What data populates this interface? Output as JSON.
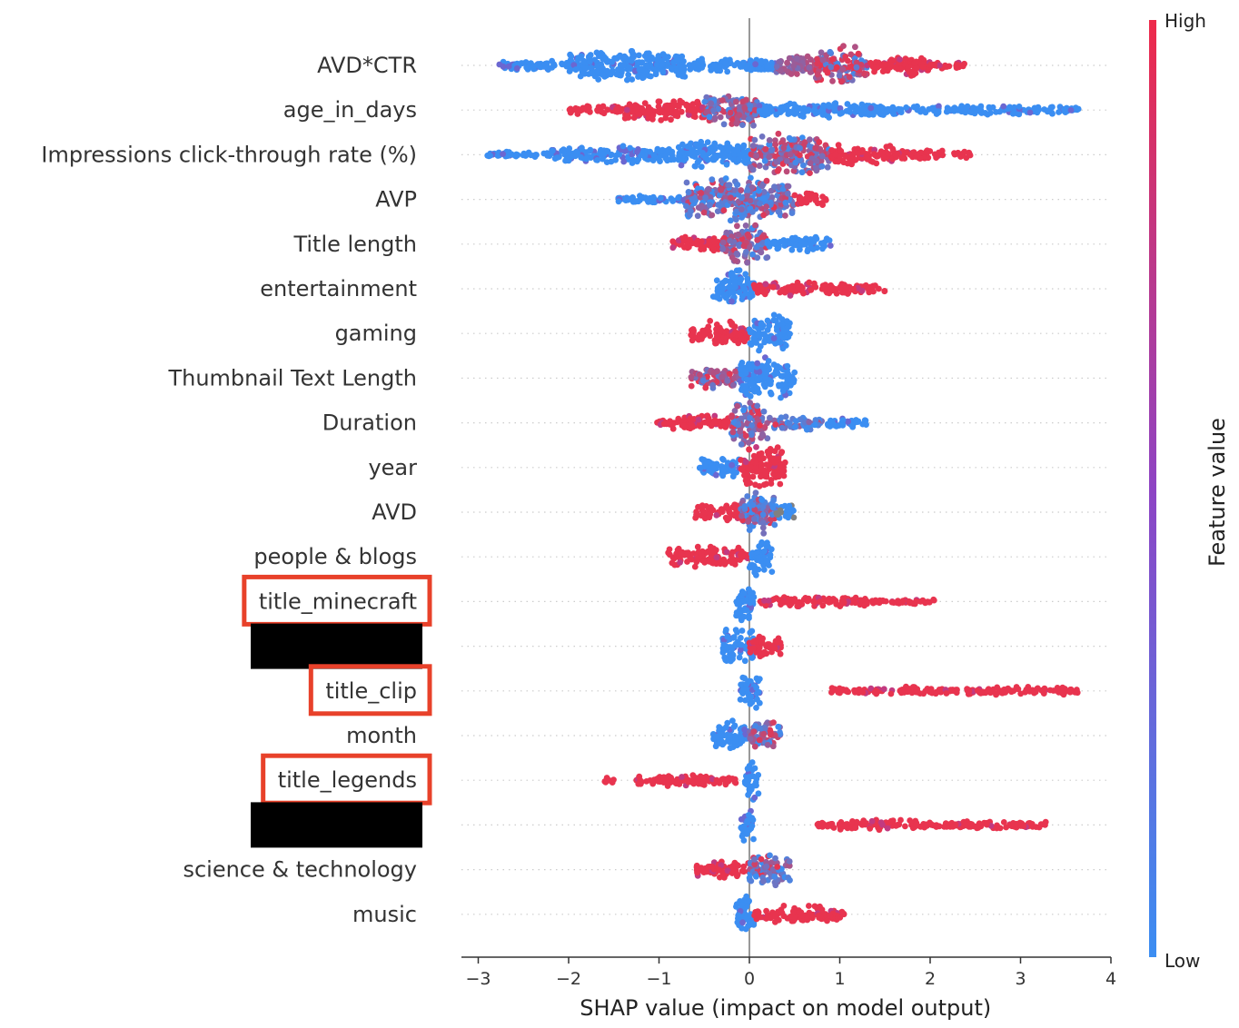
{
  "chart_data": {
    "type": "scatter",
    "subtype": "shap-beeswarm",
    "xlabel": "SHAP value (impact on model output)",
    "xlim": [
      -3.2,
      4
    ],
    "xticks": [
      -3,
      -2,
      -1,
      0,
      1,
      2,
      3,
      4
    ],
    "xtick_labels": [
      "−3",
      "−2",
      "−1",
      "0",
      "1",
      "2",
      "3",
      "4"
    ],
    "colorbar": {
      "title": "Feature value",
      "high_label": "High",
      "low_label": "Low",
      "high_color": "#ff0052",
      "low_color": "#008afb"
    },
    "colors": {
      "low": "#3b8ef2",
      "mid": "#9b3fb0",
      "high": "#e8344f",
      "missing": "#808080",
      "highlight_box": "#e8412a",
      "redaction": "#000000"
    },
    "features": [
      {
        "name": "AVD*CTR",
        "min": -2.8,
        "max": 2.4,
        "highlighted": false,
        "redacted": false,
        "segments": [
          {
            "from": -2.8,
            "to": -2.0,
            "value": "low",
            "density": 0.12
          },
          {
            "from": -2.0,
            "to": -0.7,
            "value": "low",
            "density": 0.45
          },
          {
            "from": -0.7,
            "to": 0.3,
            "value": "low",
            "density": 0.18
          },
          {
            "from": 0.3,
            "to": 0.7,
            "value": "mid",
            "density": 0.3
          },
          {
            "from": 0.7,
            "to": 1.3,
            "value": "mixed-high",
            "density": 0.6
          },
          {
            "from": 1.3,
            "to": 2.0,
            "value": "high",
            "density": 0.3
          },
          {
            "from": 2.0,
            "to": 2.4,
            "value": "high",
            "density": 0.08
          }
        ]
      },
      {
        "name": "age_in_days",
        "min": -2.0,
        "max": 3.65,
        "highlighted": false,
        "redacted": false,
        "segments": [
          {
            "from": -2.0,
            "to": -1.4,
            "value": "high",
            "density": 0.1
          },
          {
            "from": -1.4,
            "to": -0.5,
            "value": "high",
            "density": 0.3
          },
          {
            "from": -0.5,
            "to": 0.1,
            "value": "mixed",
            "density": 0.55
          },
          {
            "from": 0.1,
            "to": 1.5,
            "value": "low",
            "density": 0.2
          },
          {
            "from": 1.5,
            "to": 3.65,
            "value": "low",
            "density": 0.1
          }
        ]
      },
      {
        "name": "Impressions click-through rate (%)",
        "min": -2.9,
        "max": 2.45,
        "highlighted": false,
        "redacted": false,
        "segments": [
          {
            "from": -2.9,
            "to": -2.2,
            "value": "low",
            "density": 0.06
          },
          {
            "from": -2.2,
            "to": -0.8,
            "value": "low",
            "density": 0.22
          },
          {
            "from": -0.8,
            "to": 0.0,
            "value": "low",
            "density": 0.4
          },
          {
            "from": 0.0,
            "to": 0.9,
            "value": "mixed",
            "density": 0.65
          },
          {
            "from": 0.9,
            "to": 1.6,
            "value": "high",
            "density": 0.3
          },
          {
            "from": 1.6,
            "to": 2.45,
            "value": "high",
            "density": 0.1
          }
        ]
      },
      {
        "name": "AVP",
        "min": -1.45,
        "max": 0.85,
        "highlighted": false,
        "redacted": false,
        "segments": [
          {
            "from": -1.45,
            "to": -0.7,
            "value": "low",
            "density": 0.1
          },
          {
            "from": -0.7,
            "to": 0.5,
            "value": "mixed-low",
            "density": 0.7
          },
          {
            "from": 0.5,
            "to": 0.85,
            "value": "high",
            "density": 0.2
          }
        ]
      },
      {
        "name": "Title length",
        "min": -0.85,
        "max": 0.9,
        "highlighted": false,
        "redacted": false,
        "segments": [
          {
            "from": -0.85,
            "to": -0.3,
            "value": "high",
            "density": 0.2
          },
          {
            "from": -0.3,
            "to": 0.2,
            "value": "mixed",
            "density": 0.6
          },
          {
            "from": 0.2,
            "to": 0.9,
            "value": "low",
            "density": 0.2
          }
        ]
      },
      {
        "name": "entertainment",
        "min": -0.4,
        "max": 1.5,
        "highlighted": false,
        "redacted": false,
        "segments": [
          {
            "from": -0.4,
            "to": 0.05,
            "value": "low",
            "density": 0.55
          },
          {
            "from": 0.05,
            "to": 1.1,
            "value": "high",
            "density": 0.18
          },
          {
            "from": 1.1,
            "to": 1.5,
            "value": "high",
            "density": 0.1
          }
        ]
      },
      {
        "name": "gaming",
        "min": -0.65,
        "max": 0.45,
        "highlighted": false,
        "redacted": false,
        "segments": [
          {
            "from": -0.65,
            "to": 0.0,
            "value": "high",
            "density": 0.35
          },
          {
            "from": 0.0,
            "to": 0.45,
            "value": "low",
            "density": 0.55
          }
        ]
      },
      {
        "name": "Thumbnail Text Length",
        "min": -0.65,
        "max": 0.5,
        "highlighted": false,
        "redacted": false,
        "segments": [
          {
            "from": -0.65,
            "to": -0.1,
            "value": "mixed",
            "density": 0.3
          },
          {
            "from": -0.1,
            "to": 0.5,
            "value": "low",
            "density": 0.7
          }
        ]
      },
      {
        "name": "Duration",
        "min": -1.05,
        "max": 1.3,
        "highlighted": false,
        "redacted": false,
        "segments": [
          {
            "from": -1.05,
            "to": -0.2,
            "value": "high",
            "density": 0.2
          },
          {
            "from": -0.2,
            "to": 0.2,
            "value": "mixed",
            "density": 0.7
          },
          {
            "from": 0.2,
            "to": 0.8,
            "value": "mixed-low",
            "density": 0.2
          },
          {
            "from": 0.8,
            "to": 1.3,
            "value": "low",
            "density": 0.1
          }
        ]
      },
      {
        "name": "year",
        "min": -0.55,
        "max": 0.4,
        "highlighted": false,
        "redacted": false,
        "segments": [
          {
            "from": -0.55,
            "to": -0.1,
            "value": "low",
            "density": 0.3
          },
          {
            "from": -0.1,
            "to": 0.4,
            "value": "high",
            "density": 0.7
          }
        ]
      },
      {
        "name": "AVD",
        "min": -0.6,
        "max": 0.5,
        "highlighted": false,
        "redacted": false,
        "segments": [
          {
            "from": -0.6,
            "to": -0.1,
            "value": "high",
            "density": 0.25
          },
          {
            "from": -0.1,
            "to": 0.3,
            "value": "mixed-low",
            "density": 0.65
          },
          {
            "from": 0.3,
            "to": 0.5,
            "value": "missing",
            "density": 0.2
          }
        ]
      },
      {
        "name": "people & blogs",
        "min": -0.9,
        "max": 0.25,
        "highlighted": false,
        "redacted": false,
        "segments": [
          {
            "from": -0.9,
            "to": 0.0,
            "value": "high",
            "density": 0.28
          },
          {
            "from": 0.0,
            "to": 0.25,
            "value": "low",
            "density": 0.6
          }
        ]
      },
      {
        "name": "title_minecraft",
        "min": -0.15,
        "max": 2.05,
        "highlighted": true,
        "redacted": false,
        "segments": [
          {
            "from": -0.15,
            "to": 0.05,
            "value": "low",
            "density": 0.6
          },
          {
            "from": 0.1,
            "to": 1.4,
            "value": "high",
            "density": 0.12
          },
          {
            "from": 1.4,
            "to": 2.05,
            "value": "high",
            "density": 0.06
          }
        ]
      },
      {
        "name": "",
        "min": -0.3,
        "max": 0.35,
        "highlighted": false,
        "redacted": true,
        "segments": [
          {
            "from": -0.3,
            "to": 0.05,
            "value": "low",
            "density": 0.55
          },
          {
            "from": 0.0,
            "to": 0.35,
            "value": "high",
            "density": 0.35
          }
        ]
      },
      {
        "name": "title_clip",
        "min": -0.1,
        "max": 3.65,
        "highlighted": true,
        "redacted": false,
        "segments": [
          {
            "from": -0.1,
            "to": 0.12,
            "value": "low",
            "density": 0.6
          },
          {
            "from": 0.9,
            "to": 2.3,
            "value": "high",
            "density": 0.09
          },
          {
            "from": 2.4,
            "to": 3.65,
            "value": "high",
            "density": 0.09
          }
        ]
      },
      {
        "name": "month",
        "min": -0.4,
        "max": 0.35,
        "highlighted": false,
        "redacted": false,
        "segments": [
          {
            "from": -0.4,
            "to": 0.0,
            "value": "low",
            "density": 0.45
          },
          {
            "from": 0.0,
            "to": 0.35,
            "value": "mixed",
            "density": 0.45
          }
        ]
      },
      {
        "name": "title_legends",
        "min": -1.6,
        "max": 0.1,
        "highlighted": true,
        "redacted": false,
        "segments": [
          {
            "from": -1.6,
            "to": -1.5,
            "value": "high",
            "density": 0.08
          },
          {
            "from": -1.25,
            "to": -0.15,
            "value": "high",
            "density": 0.15
          },
          {
            "from": -0.05,
            "to": 0.1,
            "value": "low",
            "density": 0.6
          }
        ]
      },
      {
        "name": "",
        "min": -0.1,
        "max": 3.3,
        "highlighted": false,
        "redacted": true,
        "segments": [
          {
            "from": -0.1,
            "to": 0.05,
            "value": "low",
            "density": 0.55
          },
          {
            "from": 0.75,
            "to": 2.0,
            "value": "high",
            "density": 0.12
          },
          {
            "from": 2.0,
            "to": 3.3,
            "value": "high",
            "density": 0.08
          }
        ]
      },
      {
        "name": "science & technology",
        "min": -0.6,
        "max": 0.45,
        "highlighted": false,
        "redacted": false,
        "segments": [
          {
            "from": -0.6,
            "to": 0.0,
            "value": "high",
            "density": 0.22
          },
          {
            "from": 0.0,
            "to": 0.45,
            "value": "mixed-low",
            "density": 0.45
          }
        ]
      },
      {
        "name": "music",
        "min": -0.15,
        "max": 1.05,
        "highlighted": false,
        "redacted": false,
        "segments": [
          {
            "from": -0.15,
            "to": 0.05,
            "value": "low",
            "density": 0.6
          },
          {
            "from": 0.05,
            "to": 1.05,
            "value": "high",
            "density": 0.22
          }
        ]
      }
    ]
  }
}
